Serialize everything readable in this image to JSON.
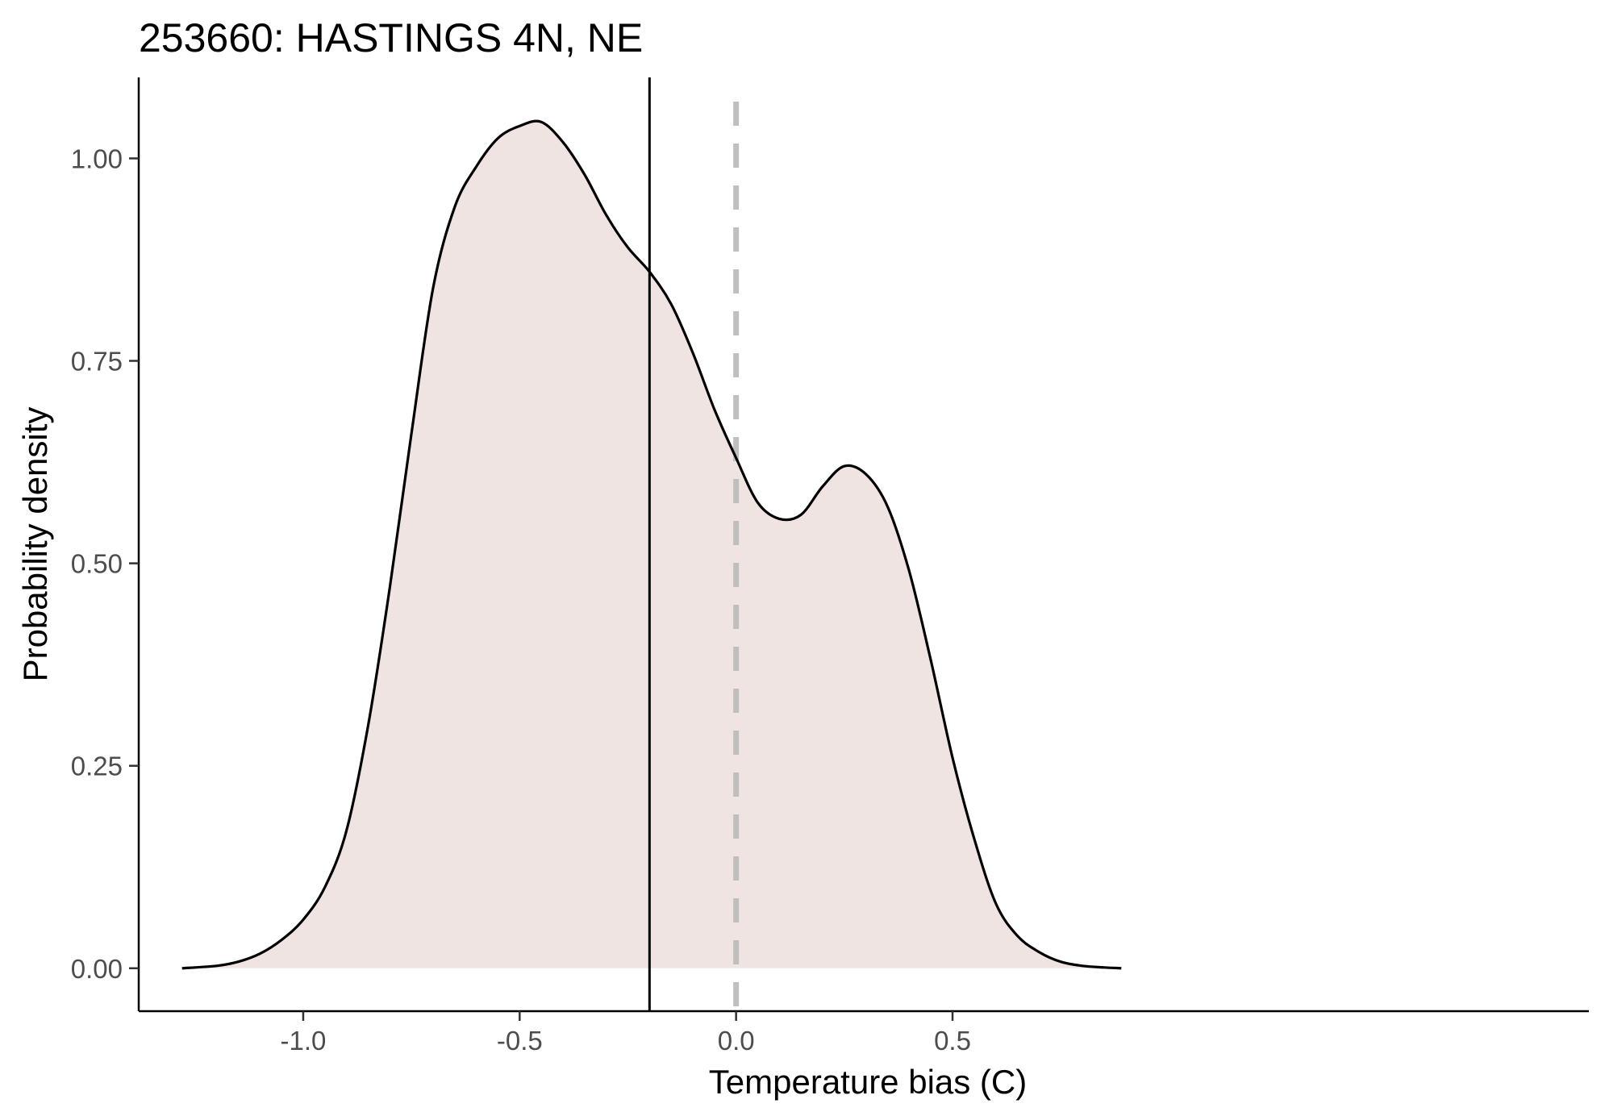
{
  "chart_data": {
    "type": "area",
    "title": "253660: HASTINGS 4N, NE",
    "xlabel": "Temperature bias (C)",
    "ylabel": "Probability density",
    "xlim": [
      -1.38,
      1.97
    ],
    "ylim": [
      -0.053,
      1.1
    ],
    "x_ticks": [
      -1.0,
      -0.5,
      0.0,
      0.5
    ],
    "x_tick_labels": [
      "-1.0",
      "-0.5",
      "0.0",
      "0.5"
    ],
    "y_ticks": [
      0.0,
      0.25,
      0.5,
      0.75,
      1.0
    ],
    "y_tick_labels": [
      "0.00",
      "0.25",
      "0.50",
      "0.75",
      "1.00"
    ],
    "grid": false,
    "fill_color": "#efe4e2",
    "line_color": "#000000",
    "reference_lines": [
      {
        "x": -0.2,
        "style": "solid",
        "color": "#000000"
      },
      {
        "x": 0.0,
        "style": "dashed",
        "color": "#bfbfbf"
      }
    ],
    "series": [
      {
        "x": [
          -1.28,
          -1.2,
          -1.15,
          -1.1,
          -1.05,
          -1.0,
          -0.95,
          -0.9,
          -0.85,
          -0.8,
          -0.75,
          -0.7,
          -0.65,
          -0.6,
          -0.55,
          -0.5,
          -0.45,
          -0.4,
          -0.35,
          -0.3,
          -0.25,
          -0.2,
          -0.15,
          -0.1,
          -0.05,
          0.0,
          0.05,
          0.1,
          0.15,
          0.2,
          0.25,
          0.3,
          0.35,
          0.4,
          0.45,
          0.5,
          0.55,
          0.6,
          0.65,
          0.7,
          0.75,
          0.8,
          0.85,
          0.89
        ],
        "y": [
          0.0,
          0.003,
          0.008,
          0.018,
          0.035,
          0.06,
          0.1,
          0.17,
          0.3,
          0.47,
          0.66,
          0.84,
          0.94,
          0.99,
          1.025,
          1.04,
          1.045,
          1.02,
          0.98,
          0.93,
          0.89,
          0.86,
          0.82,
          0.76,
          0.69,
          0.63,
          0.575,
          0.555,
          0.56,
          0.595,
          0.62,
          0.61,
          0.57,
          0.49,
          0.38,
          0.26,
          0.16,
          0.08,
          0.04,
          0.02,
          0.008,
          0.003,
          0.001,
          0.0
        ]
      }
    ]
  }
}
